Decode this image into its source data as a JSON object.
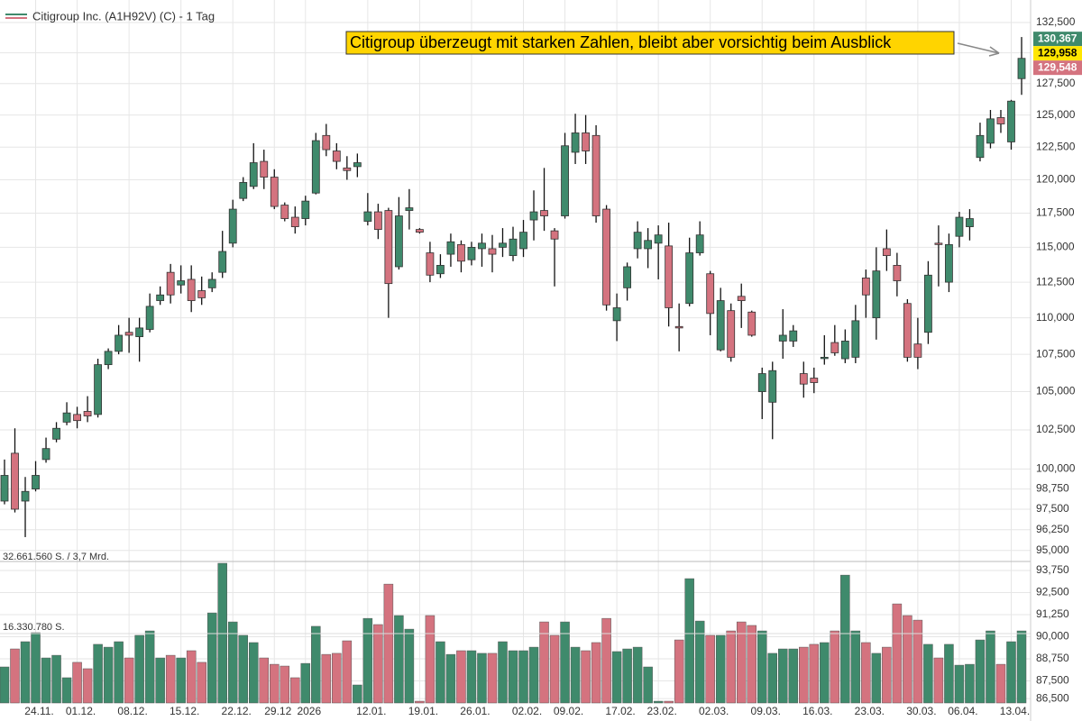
{
  "chart_data": {
    "type": "candlestick",
    "series": [
      {
        "name": "Citigroup Inc. (A1H92V) (C) - 1 Tag",
        "open": [
          98000,
          101000,
          98000,
          98750,
          100600,
          101900,
          103000,
          103500,
          103700,
          103500,
          106800,
          107700,
          109000,
          108700,
          109200,
          111200,
          113200,
          112300,
          112700,
          111900,
          112100,
          113200,
          115300,
          118600,
          119500,
          121400,
          120200,
          118100,
          117200,
          117100,
          119000,
          123400,
          122200,
          120900,
          121000,
          116900,
          117600,
          117700,
          113600,
          117700,
          116300,
          114600,
          113100,
          114500,
          115200,
          114100,
          114900,
          114900,
          115000,
          114400,
          114900,
          117000,
          117700,
          116200,
          117300,
          122100,
          123600,
          123400,
          117800,
          109800,
          112100,
          114900,
          114900,
          115300,
          115100,
          109400,
          111000,
          114600,
          113100,
          107800,
          110500,
          111500,
          110400,
          105000,
          104300,
          108400,
          108400,
          106200,
          105900,
          107250,
          108300,
          107200,
          107300,
          112800,
          110000,
          114900,
          113700,
          111000,
          108200,
          109000,
          115300,
          112500,
          115800,
          116500,
          121700,
          122800,
          124800,
          122900,
          127900
        ],
        "high": [
          100600,
          102600,
          99500,
          100500,
          102000,
          103000,
          104300,
          104000,
          104700,
          107200,
          107900,
          109500,
          110000,
          110000,
          111700,
          112200,
          113800,
          113700,
          113700,
          112900,
          113200,
          116200,
          118500,
          120200,
          122800,
          122300,
          120800,
          118300,
          118000,
          118800,
          123600,
          124300,
          122800,
          121800,
          122000,
          119000,
          118200,
          117900,
          118700,
          119300,
          116400,
          115400,
          114500,
          116000,
          115500,
          115400,
          116000,
          115900,
          116400,
          116500,
          117000,
          119200,
          120900,
          116400,
          123600,
          125100,
          125000,
          124200,
          118100,
          111700,
          113900,
          116900,
          116400,
          116600,
          116800,
          111000,
          115700,
          116900,
          113300,
          112100,
          111000,
          112400,
          110500,
          106600,
          107000,
          110600,
          109500,
          107000,
          106600,
          108800,
          109500,
          109200,
          110900,
          113400,
          115000,
          116300,
          114600,
          111300,
          110000,
          114000,
          116600,
          116000,
          117600,
          117800,
          124400,
          125400,
          125400,
          126200,
          131300
        ],
        "low": [
          97800,
          97300,
          95800,
          98600,
          100400,
          101700,
          102800,
          102600,
          103000,
          103300,
          106500,
          107500,
          107600,
          107000,
          109000,
          110900,
          111000,
          111700,
          110400,
          110900,
          111800,
          112800,
          115000,
          118400,
          119300,
          119300,
          117800,
          116900,
          116000,
          116600,
          118900,
          121800,
          120800,
          120000,
          120200,
          116600,
          115600,
          110000,
          113400,
          116300,
          116000,
          112500,
          112800,
          113600,
          113200,
          113700,
          113600,
          113200,
          114300,
          114000,
          114300,
          115500,
          116200,
          112200,
          117100,
          121200,
          121200,
          116800,
          110500,
          108400,
          111200,
          114200,
          113500,
          112700,
          109400,
          107700,
          110800,
          114400,
          108800,
          107700,
          107000,
          109300,
          108700,
          103200,
          101900,
          107200,
          108000,
          104600,
          104900,
          106800,
          107400,
          106900,
          106900,
          110000,
          108500,
          113300,
          111500,
          107000,
          106500,
          108200,
          112200,
          111800,
          115000,
          115500,
          121400,
          122400,
          123600,
          122300,
          126600
        ],
        "close": [
          99600,
          97500,
          98600,
          99600,
          101300,
          102600,
          103600,
          103100,
          103400,
          106800,
          107700,
          108800,
          108800,
          109300,
          110800,
          111600,
          111600,
          112600,
          111200,
          111400,
          112700,
          114700,
          117800,
          119800,
          121300,
          120200,
          118000,
          117100,
          116500,
          118400,
          123000,
          122300,
          121400,
          120700,
          121300,
          117600,
          116300,
          112400,
          117300,
          117900,
          116100,
          113000,
          113700,
          115400,
          114000,
          115000,
          115300,
          114500,
          115300,
          115600,
          116100,
          117600,
          117300,
          115600,
          122600,
          123600,
          122200,
          117300,
          110900,
          110700,
          113600,
          116100,
          115500,
          115900,
          110700,
          109300,
          114600,
          115900,
          110300,
          111200,
          107300,
          111200,
          108800,
          106200,
          106400,
          108800,
          109100,
          105500,
          105600,
          107300,
          107600,
          108400,
          109800,
          111600,
          113300,
          114400,
          112600,
          107300,
          107300,
          113000,
          115200,
          115200,
          117200,
          117100,
          123400,
          124700,
          124300,
          126100,
          129548
        ]
      }
    ],
    "categories": [
      null,
      null,
      null,
      "24.11.",
      null,
      null,
      null,
      "01.12.",
      null,
      null,
      null,
      null,
      "08.12.",
      null,
      null,
      null,
      null,
      "15.12.",
      null,
      null,
      null,
      null,
      "22.12.",
      null,
      null,
      null,
      "29.12",
      null,
      null,
      "2026",
      null,
      null,
      null,
      null,
      null,
      "12.01.",
      null,
      null,
      null,
      null,
      "19.01.",
      null,
      null,
      null,
      null,
      "26.01.",
      null,
      null,
      null,
      null,
      "02.02.",
      null,
      null,
      null,
      "09.02.",
      null,
      null,
      null,
      null,
      "17.02.",
      null,
      null,
      null,
      "23.02.",
      null,
      null,
      null,
      null,
      "02.03.",
      null,
      null,
      null,
      null,
      "09.03.",
      null,
      null,
      null,
      null,
      "16.03.",
      null,
      null,
      null,
      null,
      "23.03.",
      null,
      null,
      null,
      null,
      "30.03.",
      null,
      null,
      null,
      "06.04.",
      null,
      null,
      null,
      null,
      "13.04.",
      null
    ],
    "up_color": "#3f8a6c",
    "down_color": "#d4737f",
    "log_scale": true,
    "grid": true,
    "ylim": [
      94500,
      134400
    ],
    "yticks": [
      {
        "value": 95000,
        "label": "95,000"
      },
      {
        "value": 96250,
        "label": "96,250"
      },
      {
        "value": 97500,
        "label": "97,500"
      },
      {
        "value": 98750,
        "label": "98,750"
      },
      {
        "value": 100000,
        "label": "100,000"
      },
      {
        "value": 102500,
        "label": "102,500"
      },
      {
        "value": 105000,
        "label": "105,000"
      },
      {
        "value": 107500,
        "label": "107,500"
      },
      {
        "value": 110000,
        "label": "110,000"
      },
      {
        "value": 112500,
        "label": "112,500"
      },
      {
        "value": 115000,
        "label": "115,000"
      },
      {
        "value": 117500,
        "label": "117,500"
      },
      {
        "value": 120000,
        "label": "120,000"
      },
      {
        "value": 122500,
        "label": "122,500"
      },
      {
        "value": 125000,
        "label": "125,000"
      },
      {
        "value": 127500,
        "label": "127,500"
      },
      {
        "value": 130000,
        "label": "130,000"
      },
      {
        "value": 132500,
        "label": "132,500"
      }
    ],
    "price_tags": [
      {
        "value": 130367,
        "label": "130,367",
        "color": "#3f8a6c"
      },
      {
        "value": 129958,
        "label": "129,958",
        "color": "#ffe600"
      },
      {
        "value": 129548,
        "label": "129,548",
        "color": "#d4737f"
      }
    ],
    "annotation": "Citigroup überzeugt mit starken Zahlen, bleibt aber vorsichtig beim Ausblick",
    "volume": {
      "max_label": "32.661.560 S. / 3,7 Mrd.",
      "mid_label": "16.330.780 S.",
      "ylim": [
        86250,
        94160
      ],
      "yticks": [
        {
          "value": 86500,
          "label": "86,500"
        },
        {
          "value": 87500,
          "label": "87,500"
        },
        {
          "value": 88750,
          "label": "88,750"
        },
        {
          "value": 90000,
          "label": "90,000"
        },
        {
          "value": 91250,
          "label": "91,250"
        },
        {
          "value": 92500,
          "label": "92,500"
        },
        {
          "value": 93750,
          "label": "93,750"
        }
      ],
      "values": [
        88290,
        89310,
        89720,
        90230,
        88800,
        88950,
        87680,
        88550,
        88190,
        89570,
        89410,
        89720,
        88800,
        90080,
        90330,
        88800,
        88950,
        88800,
        89210,
        88550,
        91350,
        94160,
        90840,
        90080,
        89670,
        88800,
        88440,
        88340,
        87680,
        88490,
        90590,
        89000,
        89060,
        89770,
        87270,
        91040,
        90690,
        92980,
        91200,
        90430,
        86350,
        91200,
        89720,
        89000,
        89210,
        89210,
        89060,
        89060,
        89720,
        89210,
        89210,
        89410,
        90840,
        90080,
        90840,
        89410,
        89210,
        89670,
        91040,
        89160,
        89310,
        89410,
        88290,
        86350,
        86350,
        89820,
        93290,
        90890,
        90080,
        90080,
        90330,
        90840,
        90640,
        90330,
        89060,
        89310,
        89310,
        89410,
        89570,
        89670,
        90330,
        93490,
        90330,
        89670,
        89060,
        89410,
        91860,
        91200,
        90940,
        89570,
        88800,
        89570,
        88390,
        88440,
        89820,
        90330,
        88440,
        89720,
        90330
      ]
    }
  }
}
